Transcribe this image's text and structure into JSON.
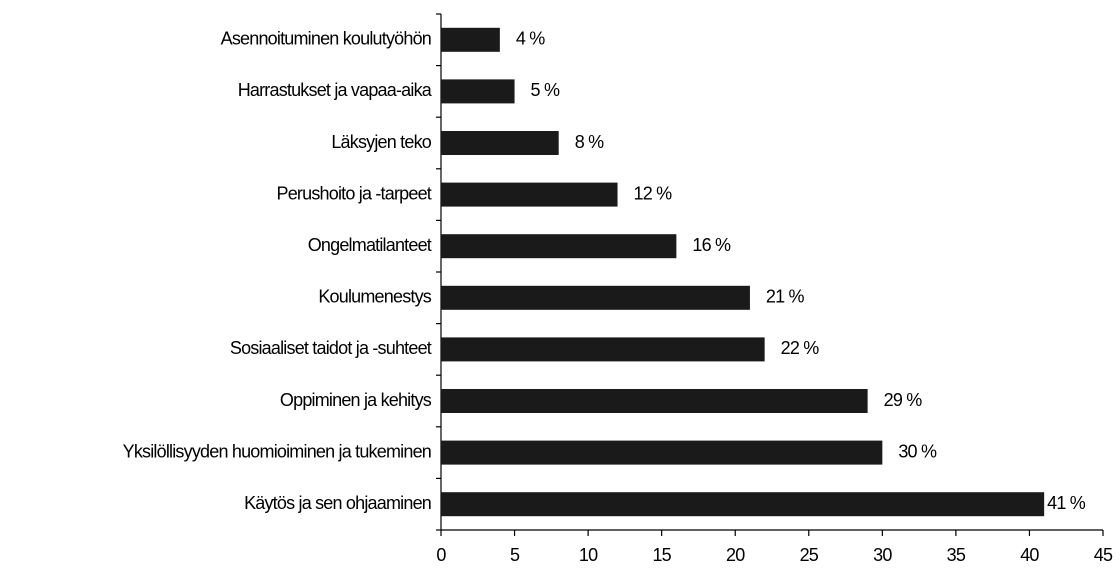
{
  "chart_data": {
    "type": "bar",
    "orientation": "horizontal",
    "categories": [
      "Asennoituminen koulutyöhön",
      "Harrastukset ja vapaa-aika",
      "Läksyjen teko",
      "Perushoito ja -tarpeet",
      "Ongelmatilanteet",
      "Koulumenestys",
      "Sosiaaliset taidot ja -suhteet",
      "Oppiminen ja kehitys",
      "Yksilöllisyyden huomioiminen ja tukeminen",
      "Käytös ja sen ohjaaminen"
    ],
    "values": [
      4,
      5,
      8,
      12,
      16,
      21,
      22,
      29,
      30,
      41
    ],
    "value_labels": [
      "4 %",
      "5 %",
      "8 %",
      "12 %",
      "16 %",
      "21 %",
      "22 %",
      "29 %",
      "30 %",
      "41 %"
    ],
    "color": "#1a1a1a",
    "xlim": [
      0,
      45
    ],
    "xticks": [
      0,
      5,
      10,
      15,
      20,
      25,
      30,
      35,
      40,
      45
    ]
  }
}
